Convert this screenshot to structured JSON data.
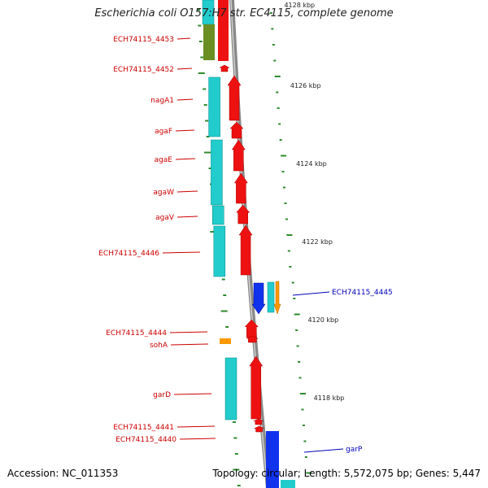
{
  "title": "Escherichia coli O157:H7 str. EC4115, complete genome",
  "footer": {
    "accession": "Accession: NC_011353",
    "topology": "Topology: circular; Length: 5,572,075 bp; Genes: 5,447"
  },
  "scale_labels": [
    "4128 kbp",
    "4126 kbp",
    "4124 kbp",
    "4122 kbp",
    "4120 kbp",
    "4118 kbp"
  ],
  "colors": {
    "reverse_label": "#cc0000",
    "forward_label": "#0000bb",
    "backbone": "#888888",
    "tick": "#2e8b2e",
    "red_gene": "#ee1111",
    "cyan_gene": "#22cccc",
    "olive_gene": "#6b8e23",
    "blue_gene": "#1133ee",
    "orange_gene": "#ff9900"
  },
  "gene_labels": [
    {
      "text": "ECH74115_4453",
      "strand": "reverse"
    },
    {
      "text": "ECH74115_4452",
      "strand": "reverse"
    },
    {
      "text": "nagA1",
      "strand": "reverse"
    },
    {
      "text": "agaF",
      "strand": "reverse"
    },
    {
      "text": "agaE",
      "strand": "reverse"
    },
    {
      "text": "agaW",
      "strand": "reverse"
    },
    {
      "text": "agaV",
      "strand": "reverse"
    },
    {
      "text": "ECH74115_4446",
      "strand": "reverse"
    },
    {
      "text": "ECH74115_4445",
      "strand": "forward"
    },
    {
      "text": "ECH74115_4444",
      "strand": "reverse"
    },
    {
      "text": "sohA",
      "strand": "reverse"
    },
    {
      "text": "garD",
      "strand": "reverse"
    },
    {
      "text": "ECH74115_4441",
      "strand": "reverse"
    },
    {
      "text": "ECH74115_4440",
      "strand": "reverse"
    },
    {
      "text": "garP",
      "strand": "forward"
    }
  ]
}
